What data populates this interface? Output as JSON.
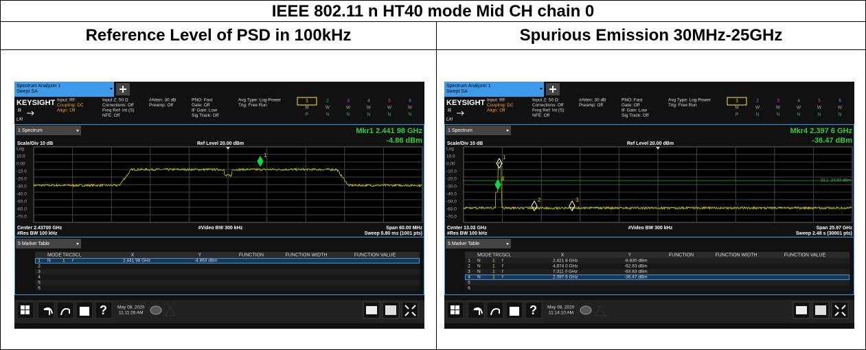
{
  "title": "IEEE 802.11 n HT40 mode Mid CH chain 0",
  "columns": [
    "Reference Level of PSD in 100kHz",
    "Spurious Emission 30MHz-25GHz"
  ],
  "screens": [
    {
      "tab": [
        "Spectrum Analyzer 1",
        "Swept SA"
      ],
      "brand": "KEYSIGHT",
      "side": [
        "R",
        "LXI"
      ],
      "status": [
        [
          "Input: RF",
          "Coupling: DC",
          "Align: Off"
        ],
        [
          "Input Z: 50 Ω",
          "Corrections: Off",
          "Freq Ref: Int (S)",
          "NFE: Off"
        ],
        [
          "#Atten: 30 dB",
          "Preamp: Off"
        ],
        [
          "PNO: Fast",
          "Gate: Off",
          "IF Gain: Low",
          "Sig Track: Off"
        ],
        [
          "Avg Type: Log-Power",
          "Trig: Free Run"
        ]
      ],
      "trace_rows": [
        [
          "1",
          "2",
          "3",
          "4",
          "5",
          "6"
        ],
        [
          "M",
          "W",
          "W",
          "W",
          "W",
          "W"
        ],
        [
          "P",
          "N",
          "N",
          "N",
          "N",
          "N"
        ]
      ],
      "window": "1 Spectrum",
      "marker_readout": [
        "Mkr1  2.441 98 GHz",
        "-4.86 dBm"
      ],
      "scale": "Scale/Div 10 dB",
      "ref_level": "Ref Level 20.00 dBm",
      "y_labels": [
        "Log",
        "10.0",
        "0.00",
        "-10.0",
        "-20.0",
        "-30.0",
        "-40.0",
        "-50.0",
        "-60.0",
        "-70.0"
      ],
      "footer": [
        [
          "Center 2.43700 GHz",
          "#Video BW 300 kHz",
          "Span 60.00 MHz"
        ],
        [
          "#Res BW 100 kHz",
          "Sweep 5.80 ms (1001 pts)"
        ]
      ],
      "table_title": "5 Marker Table",
      "table_header": [
        "MODE",
        "TRC",
        "SCL",
        "X",
        "Y",
        "FUNCTION",
        "FUNCTION WIDTH",
        "FUNCTION VALUE"
      ],
      "table_rows": [
        [
          "1",
          "N",
          "1",
          "f",
          "2.441 98 GHz",
          "-4.863 dBm"
        ],
        [
          "2"
        ],
        [
          "3"
        ],
        [
          "4"
        ],
        [
          "5"
        ],
        [
          "6"
        ]
      ],
      "date": [
        "May 08, 2020",
        "11:11:26 AM"
      ]
    },
    {
      "tab": [
        "Spectrum Analyzer 1",
        "Swept SA"
      ],
      "brand": "KEYSIGHT",
      "side": [
        "R",
        "LXI"
      ],
      "status": [
        [
          "Input: RF",
          "Coupling: DC",
          "Align: Off"
        ],
        [
          "Input Z: 50 Ω",
          "Corrections: Off",
          "Freq Ref: Int (S)",
          "NFE: Off"
        ],
        [
          "#Atten: 30 dB",
          "Preamp: Off"
        ],
        [
          "PNO: Fast",
          "Gate: Off",
          "IF Gain: Low",
          "Sig Track: Off"
        ],
        [
          "Avg Type: Log-Power",
          "Trig: Free Run"
        ]
      ],
      "trace_rows": [
        [
          "1",
          "2",
          "3",
          "4",
          "5",
          "6"
        ],
        [
          "M",
          "W",
          "W",
          "W",
          "W",
          "W"
        ],
        [
          "P",
          "N",
          "N",
          "N",
          "N",
          "N"
        ]
      ],
      "window": "1 Spectrum",
      "marker_readout": [
        "Mkr4  2.397 6 GHz",
        "-36.47 dBm"
      ],
      "scale": "Scale/Div 10 dB",
      "ref_level": "Ref Level 20.00 dBm",
      "y_labels": [
        "Log",
        "10.0",
        "0.00",
        "-10.0",
        "-20.0",
        "-30.0",
        "-40.0",
        "-50.0",
        "-60.0",
        "-70.0"
      ],
      "display_line": "DL1 -24.60 dBm",
      "footer": [
        [
          "Center 13.02 GHz",
          "#Video BW 300 kHz",
          "Span 25.97 GHz"
        ],
        [
          "#Res BW 100 kHz",
          "Sweep 2.48 s (30001 pts)"
        ]
      ],
      "table_title": "5 Marker Table",
      "table_header": [
        "MODE",
        "TRC",
        "SCL",
        "X",
        "Y",
        "FUNCTION",
        "FUNCTION WIDTH",
        "FUNCTION VALUE"
      ],
      "table_rows": [
        [
          "1",
          "N",
          "1",
          "f",
          "2.421 8 GHz",
          "-8.830 dBm"
        ],
        [
          "2",
          "N",
          "1",
          "f",
          "4.874 0 GHz",
          "-62.83 dBm"
        ],
        [
          "3",
          "N",
          "1",
          "f",
          "7.311 0 GHz",
          "-63.83 dBm"
        ],
        [
          "4",
          "N",
          "1",
          "f",
          "2.397 6 GHz",
          "-36.47 dBm"
        ],
        [
          "5"
        ],
        [
          "6"
        ]
      ],
      "date": [
        "May 08, 2020",
        "11:14:10 AM"
      ]
    }
  ]
}
